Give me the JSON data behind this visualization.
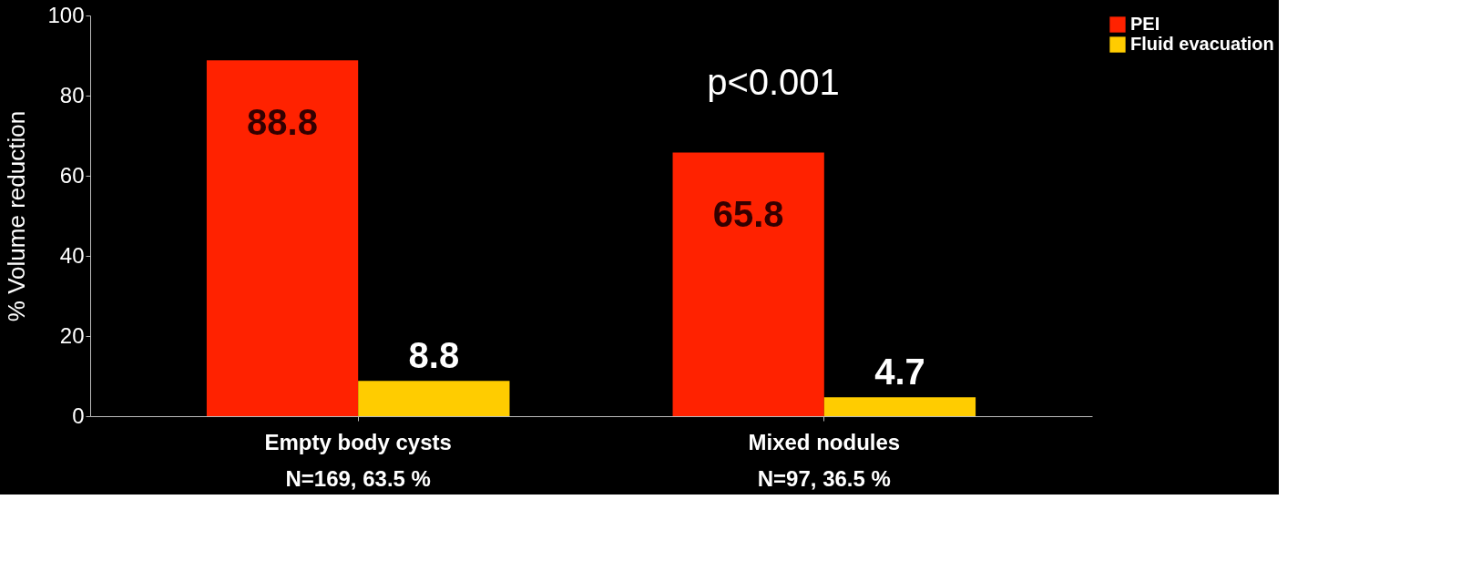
{
  "chart_data": {
    "type": "bar",
    "ylabel": "% Volume reduction",
    "categories": [
      "Empty body cysts\nN=169,  63.5 %",
      "Mixed nodules\nN=97, 36.5 %"
    ],
    "series": [
      {
        "name": "PEI",
        "color": "#ff2200",
        "values": [
          88.8,
          65.8
        ]
      },
      {
        "name": "Fluid evacuation",
        "color": "#ffcc00",
        "values": [
          8.8,
          4.7
        ]
      }
    ],
    "ylim": [
      0,
      100
    ],
    "yticks": [
      0,
      20,
      40,
      60,
      80,
      100
    ],
    "grid": false,
    "legend": "top right",
    "data_labels": true,
    "annotations": [
      "p<0.001"
    ]
  }
}
